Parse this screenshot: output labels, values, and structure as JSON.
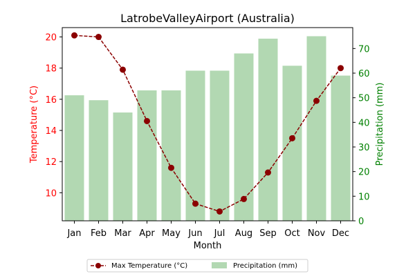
{
  "chart_data": {
    "type": "bar+line",
    "title": "LatrobeValleyAirport (Australia)",
    "xlabel": "Month",
    "categories": [
      "Jan",
      "Feb",
      "Mar",
      "Apr",
      "May",
      "Jun",
      "Jul",
      "Aug",
      "Sep",
      "Oct",
      "Nov",
      "Dec"
    ],
    "series": [
      {
        "name": "Max Temperature (°C)",
        "kind": "line",
        "axis": "left",
        "color": "#8b0000",
        "values": [
          20.1,
          20.0,
          17.9,
          14.6,
          11.6,
          9.3,
          8.8,
          9.6,
          11.3,
          13.5,
          15.9,
          18.0
        ]
      },
      {
        "name": "Precipitation (mm)",
        "kind": "bar",
        "axis": "right",
        "color": "#b2d8b2",
        "values": [
          51,
          49,
          44,
          53,
          53,
          61,
          61,
          68,
          74,
          63,
          75,
          59
        ]
      }
    ],
    "y_left": {
      "label": "Temperature (°C)",
      "color": "#ff0000",
      "ticks": [
        "10",
        "12",
        "14",
        "16",
        "18",
        "20"
      ],
      "tick_values": [
        10,
        12,
        14,
        16,
        18,
        20
      ],
      "range": [
        8.2,
        20.6
      ]
    },
    "y_right": {
      "label": "Precipitation (mm)",
      "color": "#008000",
      "ticks": [
        "0",
        "10",
        "20",
        "30",
        "40",
        "50",
        "60",
        "70"
      ],
      "tick_values": [
        0,
        10,
        20,
        30,
        40,
        50,
        60,
        70
      ],
      "range": [
        0,
        78.5
      ]
    },
    "legend": {
      "position": "bottom-center",
      "entries": [
        "Max Temperature (°C)",
        "Precipitation (mm)"
      ]
    },
    "grid": false
  }
}
